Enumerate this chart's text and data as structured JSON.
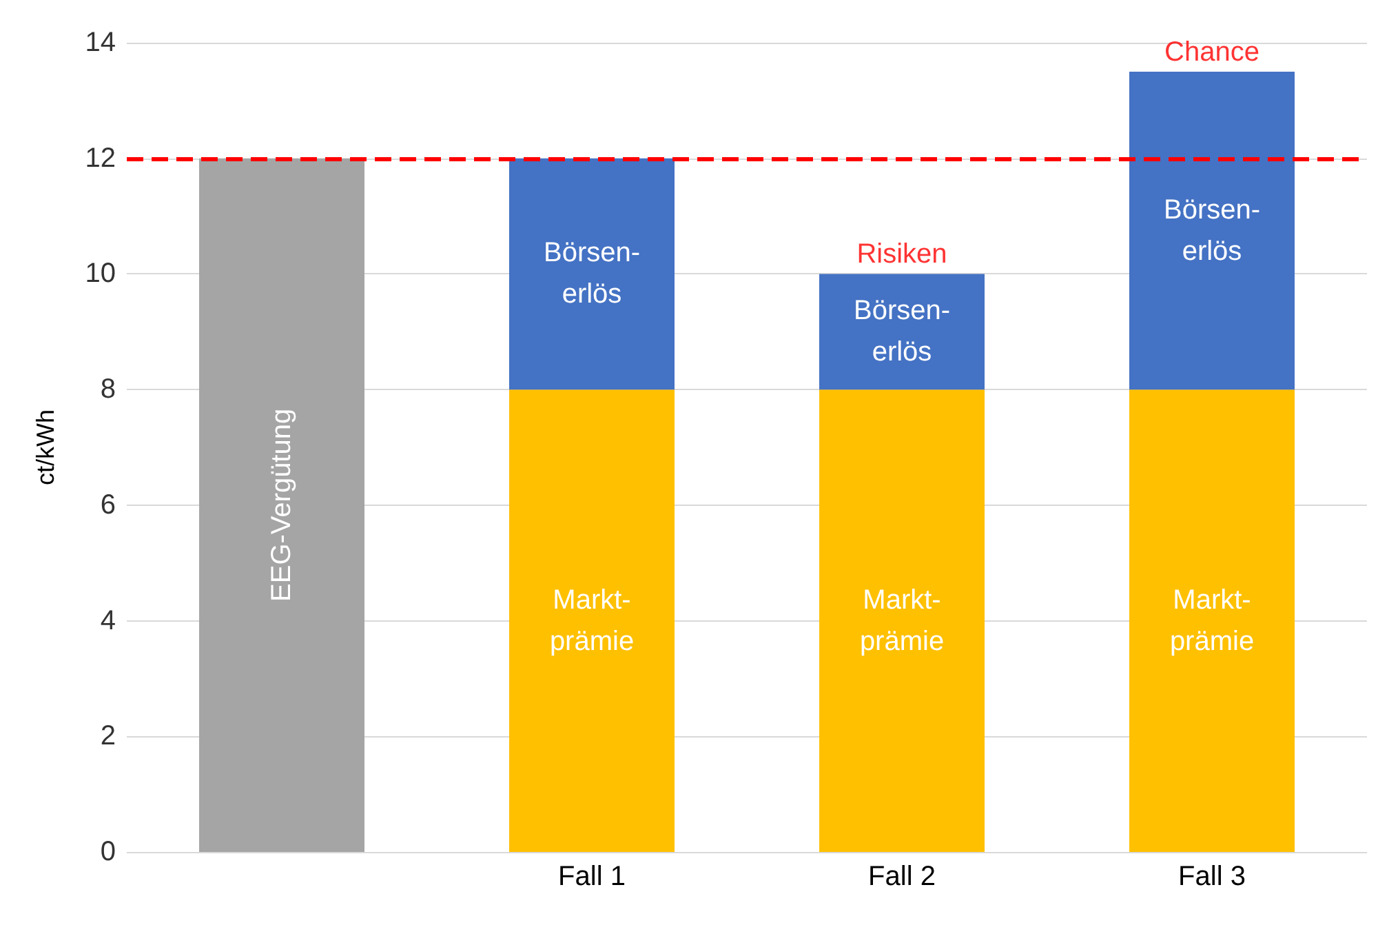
{
  "chart_data": {
    "type": "bar",
    "stacked": true,
    "ylabel": "ct/kWh",
    "categories": [
      null,
      "Fall 1",
      "Fall 2",
      "Fall 3"
    ],
    "series": [
      {
        "name": "EEG-Vergütung",
        "color": "#a5a5a5",
        "values": [
          12,
          null,
          null,
          null
        ]
      },
      {
        "name": "Markt-\nprämie",
        "color": "#ffc000",
        "values": [
          null,
          8,
          8,
          8
        ]
      },
      {
        "name": "Börsen-\nerlös",
        "color": "#4472c4",
        "values": [
          null,
          4,
          2,
          5.5
        ]
      }
    ],
    "ylim": [
      0,
      14
    ],
    "yticks": [
      0,
      2,
      4,
      6,
      8,
      10,
      12,
      14
    ],
    "grid": "y",
    "legend": false,
    "ref_lines": [
      {
        "axis": "y",
        "value": 12,
        "color": "#ff0000",
        "line_style": "dashed"
      }
    ],
    "annotations": [
      {
        "text": "Risiken",
        "x": "Fall 2",
        "y": 10
      },
      {
        "text": "Chance",
        "x": "Fall 3",
        "y": 13.5
      }
    ]
  }
}
